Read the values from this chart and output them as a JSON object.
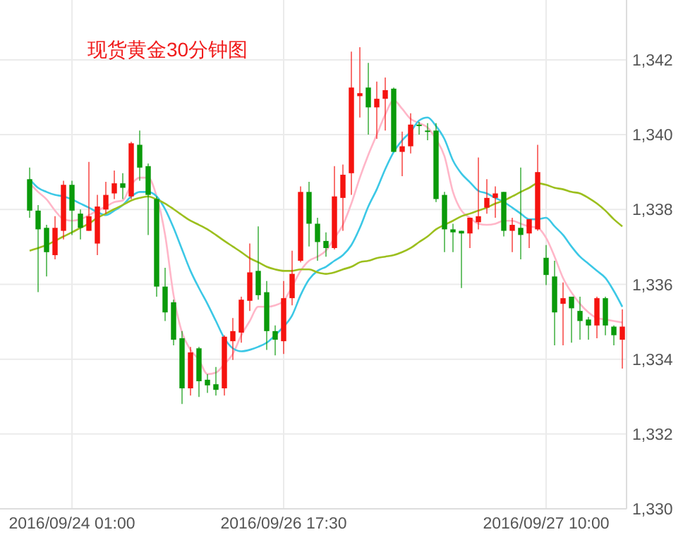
{
  "chart_data": {
    "type": "candlestick",
    "title": "现货黄金30分钟图",
    "categories": [
      null,
      null,
      null,
      null,
      null,
      "2016/09/24 01:00",
      null,
      null,
      null,
      null,
      null,
      null,
      null,
      null,
      null,
      null,
      null,
      null,
      null,
      null,
      null,
      null,
      null,
      null,
      null,
      null,
      null,
      null,
      null,
      null,
      "2016/09/26 17:30",
      null,
      null,
      null,
      null,
      null,
      null,
      null,
      null,
      null,
      null,
      null,
      null,
      null,
      null,
      null,
      null,
      null,
      null,
      null,
      null,
      null,
      null,
      null,
      null,
      null,
      null,
      null,
      null,
      null,
      null,
      "2016/09/27 10:00",
      null,
      null,
      null,
      null,
      null,
      null,
      null,
      null,
      null
    ],
    "ohlc": [
      [
        1338.81,
        1339.12,
        1337.78,
        1337.97
      ],
      [
        1337.97,
        1338.12,
        1335.79,
        1337.47
      ],
      [
        1337.51,
        1337.59,
        1336.21,
        1336.86
      ],
      [
        1336.78,
        1337.82,
        1336.67,
        1337.51
      ],
      [
        1337.43,
        1338.77,
        1337.2,
        1338.66
      ],
      [
        1338.66,
        1338.77,
        1337.32,
        1337.97
      ],
      [
        1337.89,
        1338.0,
        1337.2,
        1337.51
      ],
      [
        1337.43,
        1339.27,
        1337.43,
        1337.82
      ],
      [
        1337.09,
        1338.39,
        1336.78,
        1338.08
      ],
      [
        1338.0,
        1338.74,
        1337.89,
        1338.39
      ],
      [
        1338.43,
        1339.04,
        1338.28,
        1338.7
      ],
      [
        1338.7,
        1338.97,
        1338.28,
        1338.58
      ],
      [
        1338.35,
        1339.81,
        1338.28,
        1339.77
      ],
      [
        1339.73,
        1340.11,
        1338.77,
        1339.12
      ],
      [
        1339.16,
        1339.23,
        1337.32,
        1338.39
      ],
      [
        1338.28,
        1338.35,
        1335.67,
        1335.94
      ],
      [
        1335.94,
        1336.44,
        1335.02,
        1335.25
      ],
      [
        1335.52,
        1335.59,
        1334.37,
        1334.52
      ],
      [
        1334.56,
        1334.75,
        1332.8,
        1333.22
      ],
      [
        1333.22,
        1334.33,
        1333.03,
        1334.18
      ],
      [
        1334.29,
        1334.33,
        1332.99,
        1333.41
      ],
      [
        1333.45,
        1333.6,
        1333.1,
        1333.3
      ],
      [
        1333.33,
        1333.79,
        1333.03,
        1333.18
      ],
      [
        1333.22,
        1334.64,
        1333.03,
        1334.6
      ],
      [
        1334.48,
        1335.1,
        1333.98,
        1334.75
      ],
      [
        1334.71,
        1335.67,
        1334.44,
        1335.59
      ],
      [
        1335.56,
        1337.09,
        1335.29,
        1336.32
      ],
      [
        1336.36,
        1337.55,
        1335.59,
        1335.71
      ],
      [
        1335.79,
        1336.09,
        1334.25,
        1334.75
      ],
      [
        1334.75,
        1334.9,
        1334.1,
        1334.52
      ],
      [
        1334.48,
        1336.09,
        1334.14,
        1335.63
      ],
      [
        1335.63,
        1336.9,
        1335.44,
        1336.28
      ],
      [
        1336.63,
        1338.62,
        1336.59,
        1338.47
      ],
      [
        1338.47,
        1338.74,
        1337.01,
        1337.62
      ],
      [
        1337.62,
        1337.78,
        1336.63,
        1337.13
      ],
      [
        1337.16,
        1337.39,
        1336.74,
        1336.97
      ],
      [
        1336.97,
        1339.16,
        1336.93,
        1338.35
      ],
      [
        1338.31,
        1339.2,
        1337.43,
        1338.93
      ],
      [
        1338.97,
        1342.22,
        1338.39,
        1341.26
      ],
      [
        1341.03,
        1342.34,
        1340.46,
        1341.11
      ],
      [
        1341.26,
        1341.92,
        1340.0,
        1340.73
      ],
      [
        1340.73,
        1341.42,
        1339.89,
        1340.96
      ],
      [
        1340.96,
        1341.53,
        1340.11,
        1341.19
      ],
      [
        1341.23,
        1341.26,
        1339.54,
        1339.54
      ],
      [
        1339.54,
        1340.08,
        1338.89,
        1339.69
      ],
      [
        1339.69,
        1340.57,
        1339.5,
        1340.27
      ],
      [
        1340.27,
        1340.34,
        1340.0,
        1340.23
      ],
      [
        1340.11,
        1340.31,
        1339.85,
        1340.08
      ],
      [
        1340.11,
        1340.31,
        1338.2,
        1338.28
      ],
      [
        1338.39,
        1338.47,
        1336.86,
        1337.47
      ],
      [
        1337.47,
        1337.62,
        1336.86,
        1337.39
      ],
      [
        1337.43,
        1337.43,
        1335.9,
        1337.36
      ],
      [
        1337.36,
        1337.78,
        1336.97,
        1337.78
      ],
      [
        1337.66,
        1339.39,
        1337.47,
        1337.82
      ],
      [
        1338.05,
        1338.81,
        1337.89,
        1338.31
      ],
      [
        1338.31,
        1338.62,
        1337.78,
        1338.43
      ],
      [
        1338.47,
        1338.47,
        1337.28,
        1337.43
      ],
      [
        1337.43,
        1337.78,
        1336.86,
        1337.59
      ],
      [
        1337.51,
        1339.12,
        1336.67,
        1337.32
      ],
      [
        1337.36,
        1337.74,
        1336.97,
        1337.74
      ],
      [
        1337.47,
        1339.73,
        1337.43,
        1339.0
      ],
      [
        1336.71,
        1337.05,
        1335.98,
        1336.25
      ],
      [
        1336.21,
        1336.63,
        1334.37,
        1335.25
      ],
      [
        1335.48,
        1336.05,
        1334.37,
        1335.63
      ],
      [
        1335.67,
        1335.67,
        1334.44,
        1335.36
      ],
      [
        1335.29,
        1335.67,
        1334.52,
        1335.02
      ],
      [
        1335.06,
        1335.13,
        1334.52,
        1334.9
      ],
      [
        1334.9,
        1335.67,
        1334.56,
        1335.63
      ],
      [
        1335.63,
        1335.67,
        1334.64,
        1334.9
      ],
      [
        1334.87,
        1334.9,
        1334.37,
        1334.64
      ],
      [
        1334.52,
        1335.33,
        1333.75,
        1334.87
      ]
    ],
    "series": [
      {
        "type": "line",
        "color": "#ffb6c8",
        "values": [
          1338.7,
          1338.47,
          1338.27,
          1337.97,
          1337.74,
          1337.7,
          1337.74,
          1337.85,
          1337.97,
          1338.08,
          1338.2,
          1338.24,
          1338.66,
          1338.85,
          1338.85,
          1338.35,
          1337.32,
          1335.71,
          1334.71,
          1334.25,
          1333.98,
          1333.6,
          1333.64,
          1333.87,
          1334.14,
          1334.64,
          1335.02,
          1335.4,
          1335.4,
          1335.44,
          1335.56,
          1335.94,
          1336.36,
          1336.63,
          1336.74,
          1336.9,
          1337.24,
          1337.59,
          1338.16,
          1338.85,
          1339.46,
          1340.0,
          1340.54,
          1340.92,
          1340.69,
          1340.42,
          1340.31,
          1340.19,
          1339.88,
          1339.42,
          1338.47,
          1337.97,
          1337.78,
          1337.62,
          1337.59,
          1337.62,
          1337.7,
          1337.7,
          1337.62,
          1337.55,
          1337.51,
          1337.24,
          1336.74,
          1336.17,
          1335.78,
          1335.48,
          1335.25,
          1335.1,
          1335.06,
          1335.02,
          1334.98
        ]
      },
      {
        "type": "line",
        "color": "#3cc8e6",
        "values": [
          1338.81,
          1338.58,
          1338.47,
          1338.39,
          1338.35,
          1338.27,
          1338.16,
          1338.05,
          1337.93,
          1337.85,
          1337.97,
          1338.12,
          1338.35,
          1338.47,
          1338.47,
          1338.35,
          1338.01,
          1337.51,
          1336.93,
          1336.36,
          1335.9,
          1335.48,
          1335.02,
          1334.56,
          1334.29,
          1334.21,
          1334.25,
          1334.33,
          1334.44,
          1334.64,
          1334.87,
          1335.17,
          1335.71,
          1336.13,
          1336.36,
          1336.47,
          1336.63,
          1336.78,
          1337.05,
          1337.51,
          1338.08,
          1338.54,
          1339.08,
          1339.54,
          1339.85,
          1340.08,
          1340.38,
          1340.46,
          1340.23,
          1339.88,
          1339.31,
          1338.96,
          1338.73,
          1338.5,
          1338.43,
          1338.31,
          1338.2,
          1338.05,
          1337.89,
          1337.74,
          1337.74,
          1337.78,
          1337.55,
          1337.32,
          1337.01,
          1336.74,
          1336.55,
          1336.36,
          1336.17,
          1335.82,
          1335.4
        ]
      },
      {
        "type": "line",
        "color": "#9cbf1e",
        "values": [
          1336.9,
          1336.97,
          1337.05,
          1337.16,
          1337.28,
          1337.39,
          1337.51,
          1337.62,
          1337.78,
          1337.89,
          1338.01,
          1338.12,
          1338.24,
          1338.31,
          1338.35,
          1338.27,
          1338.16,
          1338.01,
          1337.85,
          1337.7,
          1337.59,
          1337.47,
          1337.32,
          1337.16,
          1337.01,
          1336.86,
          1336.7,
          1336.59,
          1336.47,
          1336.4,
          1336.36,
          1336.36,
          1336.4,
          1336.4,
          1336.32,
          1336.28,
          1336.32,
          1336.4,
          1336.47,
          1336.59,
          1336.63,
          1336.7,
          1336.74,
          1336.78,
          1336.86,
          1336.97,
          1337.13,
          1337.28,
          1337.47,
          1337.59,
          1337.7,
          1337.82,
          1337.89,
          1337.97,
          1338.05,
          1338.16,
          1338.24,
          1338.35,
          1338.47,
          1338.58,
          1338.7,
          1338.66,
          1338.58,
          1338.54,
          1338.47,
          1338.43,
          1338.31,
          1338.16,
          1337.97,
          1337.74,
          1337.55
        ]
      }
    ],
    "ylim": [
      1330,
      1343.6
    ],
    "yticks": [
      {
        "value": 1330,
        "label": "1,330"
      },
      {
        "value": 1332,
        "label": "1,332"
      },
      {
        "value": 1334,
        "label": "1,334"
      },
      {
        "value": 1336,
        "label": "1,336"
      },
      {
        "value": 1338,
        "label": "1,338"
      },
      {
        "value": 1340,
        "label": "1,340"
      },
      {
        "value": 1342,
        "label": "1,342"
      }
    ],
    "grid": true
  }
}
